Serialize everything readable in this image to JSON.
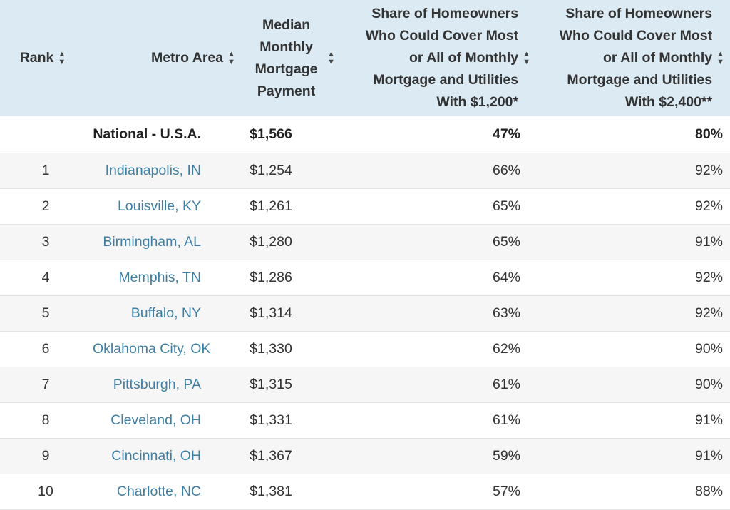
{
  "table": {
    "headers": {
      "rank": "Rank",
      "metro": "Metro Area",
      "payment": "Median Monthly Mortgage Payment",
      "share_1200": "Share of Homeowners Who Could Cover Most or All of Monthly Mortgage and Utilities With $1,200*",
      "share_2400": "Share of Homeowners Who Could Cover Most or All of Monthly Mortgage and Utilities With $2,400**"
    },
    "sort_icon": "sort-arrows-icon",
    "national": {
      "rank": "",
      "metro": "National - U.S.A.",
      "payment": "$1,566",
      "share_1200": "47%",
      "share_2400": "80%"
    },
    "rows": [
      {
        "rank": "1",
        "metro": "Indianapolis, IN",
        "payment": "$1,254",
        "share_1200": "66%",
        "share_2400": "92%"
      },
      {
        "rank": "2",
        "metro": "Louisville, KY",
        "payment": "$1,261",
        "share_1200": "65%",
        "share_2400": "92%"
      },
      {
        "rank": "3",
        "metro": "Birmingham, AL",
        "payment": "$1,280",
        "share_1200": "65%",
        "share_2400": "91%"
      },
      {
        "rank": "4",
        "metro": "Memphis, TN",
        "payment": "$1,286",
        "share_1200": "64%",
        "share_2400": "92%"
      },
      {
        "rank": "5",
        "metro": "Buffalo, NY",
        "payment": "$1,314",
        "share_1200": "63%",
        "share_2400": "92%"
      },
      {
        "rank": "6",
        "metro": "Oklahoma City, OK",
        "payment": "$1,330",
        "share_1200": "62%",
        "share_2400": "90%"
      },
      {
        "rank": "7",
        "metro": "Pittsburgh, PA",
        "payment": "$1,315",
        "share_1200": "61%",
        "share_2400": "90%"
      },
      {
        "rank": "8",
        "metro": "Cleveland, OH",
        "payment": "$1,331",
        "share_1200": "61%",
        "share_2400": "91%"
      },
      {
        "rank": "9",
        "metro": "Cincinnati, OH",
        "payment": "$1,367",
        "share_1200": "59%",
        "share_2400": "91%"
      },
      {
        "rank": "10",
        "metro": "Charlotte, NC",
        "payment": "$1,381",
        "share_1200": "57%",
        "share_2400": "88%"
      }
    ],
    "colors": {
      "header_bg": "#dbeaf3",
      "link": "#3e7fa3",
      "stripe": "#f6f6f6",
      "text": "#333333"
    }
  }
}
